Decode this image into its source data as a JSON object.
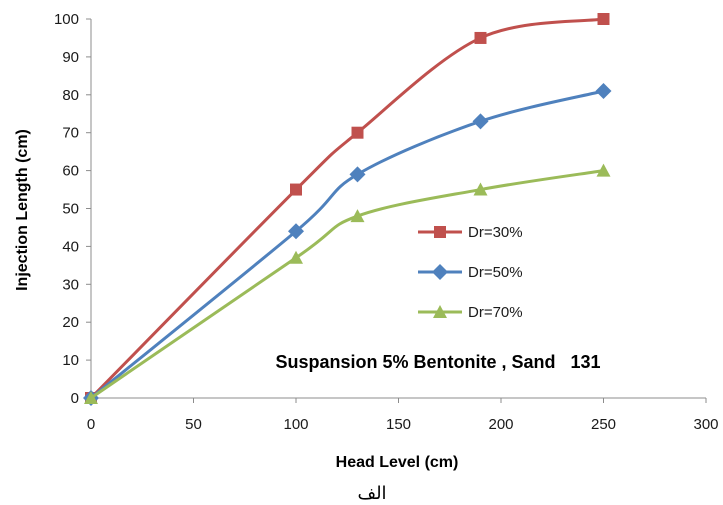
{
  "chart_data": {
    "type": "line",
    "xlabel": "Head Level (cm)",
    "ylabel": "Injection Length (cm)",
    "xlim": [
      0,
      300
    ],
    "ylim": [
      0,
      100
    ],
    "x_ticks": [
      0,
      50,
      100,
      150,
      200,
      250,
      300
    ],
    "y_ticks": [
      0,
      10,
      20,
      30,
      40,
      50,
      60,
      70,
      80,
      90,
      100
    ],
    "grid": false,
    "legend_position": "center-right",
    "annotation": "Suspansion 5% Bentonite , Sand   131",
    "caption": "الف",
    "x": [
      0,
      100,
      130,
      190,
      250
    ],
    "series": [
      {
        "name": "Dr=30%",
        "values": [
          0,
          55,
          70,
          95,
          100
        ],
        "color": "#c0504d",
        "marker": "square"
      },
      {
        "name": "Dr=50%",
        "values": [
          0,
          44,
          59,
          73,
          81
        ],
        "color": "#4f81bd",
        "marker": "diamond"
      },
      {
        "name": "Dr=70%",
        "values": [
          0,
          37,
          48,
          55,
          60
        ],
        "color": "#9bbb59",
        "marker": "triangle"
      }
    ]
  }
}
